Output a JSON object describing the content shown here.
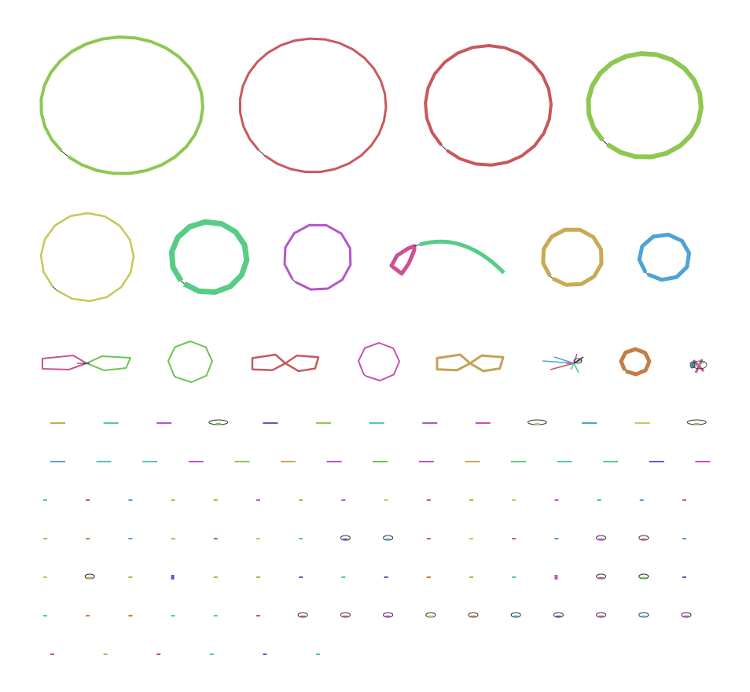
{
  "palette": {
    "lime": "#8ec751",
    "red": "#c9585d",
    "khaki": "#c9c657",
    "green": "#57cc87",
    "purple": "#b655cb",
    "pink": "#cc5196",
    "gold": "#c9aa53",
    "blue": "#4ea3d3",
    "bright_green": "#6ac651",
    "magenta": "#cb4fb1",
    "ochre": "#c4a255",
    "orange": "#c57d44",
    "teal": "#51c5bd",
    "indigo": "#6c52c9",
    "cyan": "#4fbdd4",
    "dark": "#333333"
  },
  "rows": [
    {
      "name": "large-contigs",
      "kind": "ring",
      "items": [
        {
          "id": "contig-1",
          "color": "lime",
          "shape": "ring",
          "width": 4
        },
        {
          "id": "contig-2",
          "color": "red",
          "shape": "ring",
          "width": 3
        },
        {
          "id": "contig-3",
          "color": "red",
          "shape": "ring",
          "width": 4
        },
        {
          "id": "contig-4",
          "color": "lime",
          "shape": "ring",
          "width": 6
        }
      ]
    },
    {
      "name": "medium-contigs",
      "kind": "ring",
      "items": [
        {
          "id": "contig-5",
          "color": "khaki",
          "shape": "ring",
          "width": 2.5
        },
        {
          "id": "contig-6",
          "color": "green",
          "shape": "ring",
          "width": 7
        },
        {
          "id": "contig-7",
          "color": "purple",
          "shape": "ring",
          "width": 3
        },
        {
          "id": "contig-8",
          "color": "pink",
          "shape": "arc",
          "width": 5,
          "color2": "green"
        },
        {
          "id": "contig-9",
          "color": "gold",
          "shape": "ring",
          "width": 5
        },
        {
          "id": "contig-10",
          "color": "blue",
          "shape": "ring",
          "width": 5
        }
      ]
    },
    {
      "name": "small-contigs",
      "kind": "mixed",
      "items": [
        {
          "id": "contig-11",
          "color": "pink",
          "shape": "bowtie",
          "width": 2,
          "color2": "bright_green"
        },
        {
          "id": "contig-12",
          "color": "bright_green",
          "shape": "ring",
          "width": 2
        },
        {
          "id": "contig-13",
          "color": "red",
          "shape": "bowtie",
          "width": 2.5
        },
        {
          "id": "contig-14",
          "color": "magenta",
          "shape": "ring",
          "width": 2
        },
        {
          "id": "contig-15",
          "color": "ochre",
          "shape": "bowtie",
          "width": 3
        },
        {
          "id": "contig-16",
          "color": "blue",
          "shape": "star",
          "width": 1.5
        },
        {
          "id": "contig-17",
          "color": "orange",
          "shape": "ring",
          "width": 5
        },
        {
          "id": "contig-18",
          "color": "pink",
          "shape": "tangle",
          "width": 2
        }
      ]
    },
    {
      "name": "tiny-row-1",
      "kind": "tiny",
      "items": [
        {
          "color": "gold",
          "shape": "dash"
        },
        {
          "color": "teal",
          "shape": "dash"
        },
        {
          "color": "purple",
          "shape": "dash"
        },
        {
          "color": "bright_green",
          "shape": "loop"
        },
        {
          "color": "indigo",
          "shape": "dash"
        },
        {
          "color": "lime",
          "shape": "dash"
        },
        {
          "color": "teal",
          "shape": "dash"
        },
        {
          "color": "purple",
          "shape": "dash"
        },
        {
          "color": "magenta",
          "shape": "dash"
        },
        {
          "color": "khaki",
          "shape": "loop"
        },
        {
          "color": "blue",
          "shape": "dash"
        },
        {
          "color": "khaki",
          "shape": "dash"
        },
        {
          "color": "gold",
          "shape": "loop"
        }
      ]
    },
    {
      "name": "tiny-row-2",
      "kind": "tiny",
      "items": [
        {
          "color": "blue",
          "shape": "dash"
        },
        {
          "color": "teal",
          "shape": "dash"
        },
        {
          "color": "teal",
          "shape": "dash"
        },
        {
          "color": "purple",
          "shape": "dash"
        },
        {
          "color": "lime",
          "shape": "dash"
        },
        {
          "color": "gold",
          "shape": "dash"
        },
        {
          "color": "purple",
          "shape": "dash"
        },
        {
          "color": "bright_green",
          "shape": "dash"
        },
        {
          "color": "purple",
          "shape": "dash"
        },
        {
          "color": "gold",
          "shape": "dash"
        },
        {
          "color": "green",
          "shape": "dash"
        },
        {
          "color": "teal",
          "shape": "dash"
        },
        {
          "color": "green",
          "shape": "dash"
        },
        {
          "color": "indigo",
          "shape": "dash"
        },
        {
          "color": "magenta",
          "shape": "dash"
        }
      ]
    },
    {
      "name": "tiny-row-3",
      "kind": "tiny",
      "items": [
        {
          "color": "green",
          "shape": "dot"
        },
        {
          "color": "red",
          "shape": "dot"
        },
        {
          "color": "blue",
          "shape": "dot"
        },
        {
          "color": "gold",
          "shape": "dot"
        },
        {
          "color": "gold",
          "shape": "dot"
        },
        {
          "color": "purple",
          "shape": "dot"
        },
        {
          "color": "gold",
          "shape": "dot"
        },
        {
          "color": "purple",
          "shape": "dot"
        },
        {
          "color": "khaki",
          "shape": "dot"
        },
        {
          "color": "pink",
          "shape": "dot"
        },
        {
          "color": "gold",
          "shape": "dot"
        },
        {
          "color": "khaki",
          "shape": "dot"
        },
        {
          "color": "purple",
          "shape": "dot"
        },
        {
          "color": "cyan",
          "shape": "dot"
        },
        {
          "color": "blue",
          "shape": "dot"
        },
        {
          "color": "magenta",
          "shape": "dot"
        }
      ]
    },
    {
      "name": "tiny-row-4",
      "kind": "tiny",
      "items": [
        {
          "color": "lime",
          "shape": "dot"
        },
        {
          "color": "orange",
          "shape": "dot"
        },
        {
          "color": "blue",
          "shape": "dot"
        },
        {
          "color": "gold",
          "shape": "dot"
        },
        {
          "color": "purple",
          "shape": "dot"
        },
        {
          "color": "khaki",
          "shape": "dot"
        },
        {
          "color": "green",
          "shape": "dot"
        },
        {
          "color": "indigo",
          "shape": "loop"
        },
        {
          "color": "blue",
          "shape": "loop"
        },
        {
          "color": "magenta",
          "shape": "dot"
        },
        {
          "color": "khaki",
          "shape": "dot"
        },
        {
          "color": "magenta",
          "shape": "dot"
        },
        {
          "color": "blue",
          "shape": "dot"
        },
        {
          "color": "purple",
          "shape": "loop"
        },
        {
          "color": "red",
          "shape": "loop"
        },
        {
          "color": "blue",
          "shape": "dot"
        }
      ]
    },
    {
      "name": "tiny-row-5",
      "kind": "tiny",
      "items": [
        {
          "color": "khaki",
          "shape": "dot"
        },
        {
          "color": "gold",
          "shape": "loop"
        },
        {
          "color": "lime",
          "shape": "dot"
        },
        {
          "color": "indigo",
          "shape": "block"
        },
        {
          "color": "lime",
          "shape": "dot"
        },
        {
          "color": "lime",
          "shape": "dot"
        },
        {
          "color": "indigo",
          "shape": "dot"
        },
        {
          "color": "green",
          "shape": "dot"
        },
        {
          "color": "indigo",
          "shape": "dot"
        },
        {
          "color": "orange",
          "shape": "dot"
        },
        {
          "color": "lime",
          "shape": "dot"
        },
        {
          "color": "teal",
          "shape": "dot"
        },
        {
          "color": "magenta",
          "shape": "block"
        },
        {
          "color": "pink",
          "shape": "loop"
        },
        {
          "color": "bright_green",
          "shape": "loop"
        },
        {
          "color": "indigo",
          "shape": "dot"
        }
      ]
    },
    {
      "name": "tiny-row-6",
      "kind": "tiny",
      "items": [
        {
          "color": "green",
          "shape": "dot"
        },
        {
          "color": "orange",
          "shape": "dot"
        },
        {
          "color": "orange",
          "shape": "dot"
        },
        {
          "color": "teal",
          "shape": "dot"
        },
        {
          "color": "teal",
          "shape": "dot"
        },
        {
          "color": "magenta",
          "shape": "dot"
        },
        {
          "color": "red",
          "shape": "loop"
        },
        {
          "color": "pink",
          "shape": "loop"
        },
        {
          "color": "purple",
          "shape": "loop"
        },
        {
          "color": "khaki",
          "shape": "loop"
        },
        {
          "color": "orange",
          "shape": "loop"
        },
        {
          "color": "blue",
          "shape": "loop"
        },
        {
          "color": "indigo",
          "shape": "loop"
        },
        {
          "color": "magenta",
          "shape": "loop"
        },
        {
          "color": "cyan",
          "shape": "loop"
        },
        {
          "color": "purple",
          "shape": "loop"
        }
      ]
    },
    {
      "name": "tiny-row-7",
      "kind": "tiny",
      "items": [
        {
          "color": "magenta",
          "shape": "dot"
        },
        {
          "color": "lime",
          "shape": "dot"
        },
        {
          "color": "red",
          "shape": "dot"
        },
        {
          "color": "teal",
          "shape": "dot"
        },
        {
          "color": "indigo",
          "shape": "dot"
        },
        {
          "color": "teal",
          "shape": "dot"
        }
      ]
    }
  ]
}
